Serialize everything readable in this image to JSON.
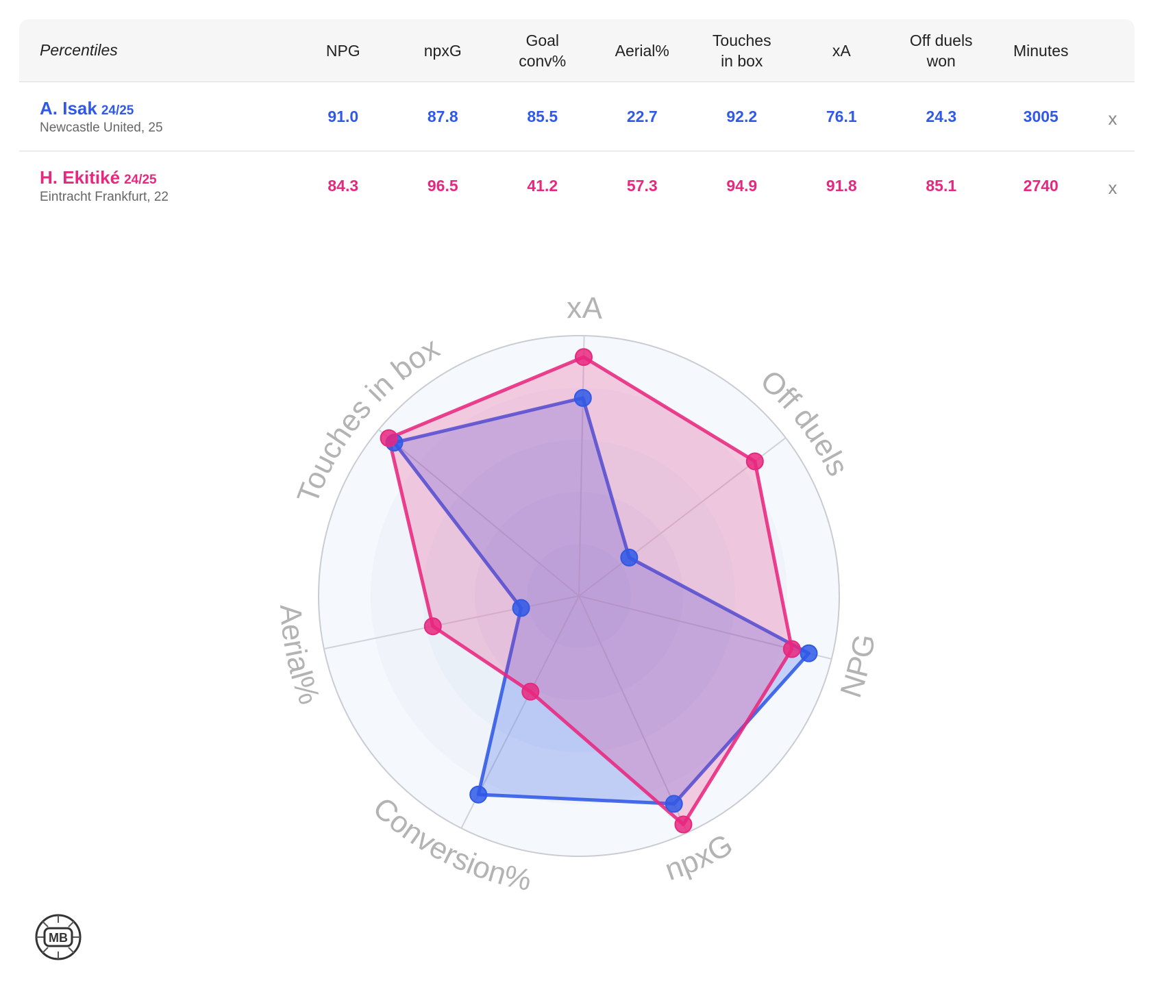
{
  "table": {
    "header_label": "Percentiles",
    "columns": [
      "NPG",
      "npxG",
      "Goal\nconv%",
      "Aerial%",
      "Touches\nin box",
      "xA",
      "Off duels\nwon",
      "Minutes"
    ],
    "players": [
      {
        "name": "A. Isak",
        "season": "24/25",
        "club": "Newcastle United, 25",
        "values": [
          "91.0",
          "87.8",
          "85.5",
          "22.7",
          "92.2",
          "76.1",
          "24.3",
          "3005"
        ],
        "remove_label": "x"
      },
      {
        "name": "H. Ekitiké",
        "season": "24/25",
        "club": "Eintracht Frankfurt, 22",
        "values": [
          "84.3",
          "96.5",
          "41.2",
          "57.3",
          "94.9",
          "91.8",
          "85.1",
          "2740"
        ],
        "remove_label": "x"
      }
    ]
  },
  "chart_data": {
    "type": "radar",
    "axes": [
      "xA",
      "Off duels",
      "NPG",
      "npxG",
      "Conversion%",
      "Aerial%",
      "Touches in box"
    ],
    "range": [
      0,
      100
    ],
    "series": [
      {
        "name": "A. Isak",
        "color": "#2f59e6",
        "values": [
          76.1,
          24.3,
          91.0,
          87.8,
          85.5,
          22.7,
          92.2
        ]
      },
      {
        "name": "H. Ekitiké",
        "color": "#e8277e",
        "values": [
          91.8,
          85.1,
          84.3,
          96.5,
          41.2,
          57.3,
          94.9
        ]
      }
    ]
  },
  "logo": {
    "text": "MB"
  },
  "colors": {
    "blue": "#2f59e6",
    "pink": "#e8277e",
    "header_bg": "#f6f6f6",
    "axis_label": "#b3b3b3"
  }
}
